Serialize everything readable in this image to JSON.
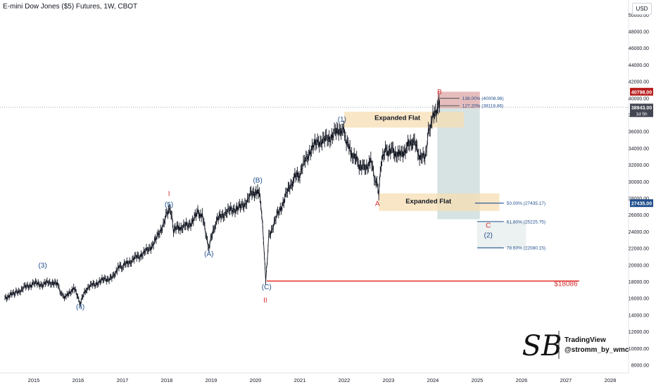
{
  "header": {
    "title": "E-mini Dow Jones ($5) Futures, 1W, CBOT",
    "currency": "USD"
  },
  "watermark": {
    "brand": "TradingView",
    "handle": "@stromm_by_wmc",
    "monogram": "SB"
  },
  "colors": {
    "price_line": "#131722",
    "wave_blue": "#1f4e8c",
    "wave_red": "#d32f2f",
    "support_red": "#e53935",
    "zone_orange": "#f5deb3",
    "zone_green": "#b7cccc",
    "zone_red": "#d99a9a",
    "fib_line": "#1f4e8c",
    "price_tag_dark": "#1f4e8c",
    "price_tag_red": "#b71c1c"
  },
  "chart_data": {
    "type": "line",
    "title": "E-mini Dow Jones ($5) Futures, 1W, CBOT",
    "xlabel": "",
    "ylabel": "",
    "ylim": [
      7000,
      51500
    ],
    "x_tick_labels": [
      "2015",
      "2016",
      "2017",
      "2018",
      "2019",
      "2020",
      "2021",
      "2022",
      "2023",
      "2024",
      "2025",
      "2026",
      "2027",
      "2028"
    ],
    "y_tick_labels": [
      "8000.00",
      "10000.00",
      "12000.00",
      "14000.00",
      "16000.00",
      "18000.00",
      "20000.00",
      "22000.00",
      "24000.00",
      "26000.00",
      "28000.00",
      "30000.00",
      "32000.00",
      "34000.00",
      "36000.00",
      "38000.00",
      "40000.00",
      "42000.00",
      "44000.00",
      "46000.00",
      "48000.00",
      "50000.00"
    ],
    "y_ticks": [
      8000,
      10000,
      12000,
      14000,
      16000,
      18000,
      20000,
      22000,
      24000,
      26000,
      28000,
      30000,
      32000,
      34000,
      36000,
      38000,
      40000,
      42000,
      44000,
      46000,
      48000,
      50000
    ],
    "grid": false,
    "series": [
      {
        "x": [
          2014.35,
          2014.6,
          2014.8,
          2015.0,
          2015.2,
          2015.4,
          2015.55,
          2015.65,
          2015.75,
          2015.9,
          2016.05,
          2016.2,
          2016.4,
          2016.6,
          2016.8,
          2016.9,
          2017.0,
          2017.2,
          2017.4,
          2017.6,
          2017.8,
          2018.0,
          2018.08,
          2018.15,
          2018.3,
          2018.5,
          2018.7,
          2018.8,
          2018.95,
          2019.1,
          2019.3,
          2019.5,
          2019.7,
          2019.9,
          2020.05,
          2020.12,
          2020.2,
          2020.23,
          2020.3,
          2020.5,
          2020.7,
          2020.85,
          2021.0,
          2021.2,
          2021.4,
          2021.6,
          2021.8,
          2021.95,
          2022.05,
          2022.15,
          2022.3,
          2022.45,
          2022.6,
          2022.7,
          2022.78,
          2022.85,
          2022.95,
          2023.1,
          2023.25,
          2023.4,
          2023.55,
          2023.7,
          2023.82,
          2023.9,
          2024.0,
          2024.1,
          2024.15
        ],
        "values": [
          16100,
          16700,
          17300,
          17800,
          17700,
          18000,
          17600,
          16200,
          16300,
          17300,
          15500,
          17300,
          17800,
          18300,
          18500,
          19700,
          19800,
          20600,
          21200,
          21900,
          23400,
          26000,
          26700,
          24300,
          24500,
          24800,
          26200,
          25900,
          22100,
          25200,
          26300,
          26700,
          27000,
          28400,
          29000,
          27500,
          21500,
          18100,
          23500,
          26000,
          28500,
          30300,
          31000,
          33500,
          34800,
          35000,
          35800,
          36500,
          35000,
          33500,
          32300,
          31500,
          32500,
          30200,
          28800,
          33000,
          33800,
          33600,
          33200,
          34000,
          35100,
          33100,
          32800,
          36000,
          37800,
          38800,
          39050
        ]
      }
    ],
    "annotations": [
      {
        "label": "(3)",
        "x": 2015.2,
        "y": 19700,
        "color": "blue"
      },
      {
        "label": "(4)",
        "x": 2016.05,
        "y": 14700,
        "color": "blue"
      },
      {
        "label": "I",
        "x": 2018.05,
        "y": 28300,
        "color": "red"
      },
      {
        "label": "(5)",
        "x": 2018.05,
        "y": 27000,
        "color": "blue"
      },
      {
        "label": "(A)",
        "x": 2018.95,
        "y": 21100,
        "color": "blue"
      },
      {
        "label": "(B)",
        "x": 2020.05,
        "y": 29900,
        "color": "blue"
      },
      {
        "label": "(C)",
        "x": 2020.25,
        "y": 17100,
        "color": "blue"
      },
      {
        "label": "II",
        "x": 2020.22,
        "y": 15500,
        "color": "red"
      },
      {
        "label": "(1)",
        "x": 2021.95,
        "y": 37200,
        "color": "blue"
      },
      {
        "label": "Expanded Flat",
        "x": 2023.2,
        "y": 37400,
        "color": "dark"
      },
      {
        "label": "A",
        "x": 2022.75,
        "y": 27100,
        "color": "red"
      },
      {
        "label": "B",
        "x": 2024.15,
        "y": 40500,
        "color": "red"
      },
      {
        "label": "Expanded Flat",
        "x": 2023.9,
        "y": 27400,
        "color": "dark"
      },
      {
        "label": "C",
        "x": 2025.25,
        "y": 24500,
        "color": "red"
      },
      {
        "label": "(2)",
        "x": 2025.25,
        "y": 23300,
        "color": "blue"
      },
      {
        "label": "$18086",
        "x": 2027.0,
        "y": 17500,
        "color": "red"
      }
    ],
    "fib_levels": [
      {
        "label": "138.00% (40008.96)",
        "value": 40008.96
      },
      {
        "label": "127.20% (39118.86)",
        "value": 39118.86
      },
      {
        "label": "50.00% (27435.17)",
        "value": 27435.17
      },
      {
        "label": "61.80% (25225.75)",
        "value": 25225.75
      },
      {
        "label": "78.60% (22080.15)",
        "value": 22080.15
      }
    ],
    "support_level": {
      "label": "$18086",
      "value": 18086
    },
    "current_price": {
      "label": "38943.00",
      "value": 38943,
      "countdown": "1d 5h"
    },
    "price_tags": [
      {
        "label": "40798.00",
        "value": 40798,
        "color": "red"
      },
      {
        "label": "27435.00",
        "value": 27435,
        "color": "blue"
      }
    ]
  }
}
